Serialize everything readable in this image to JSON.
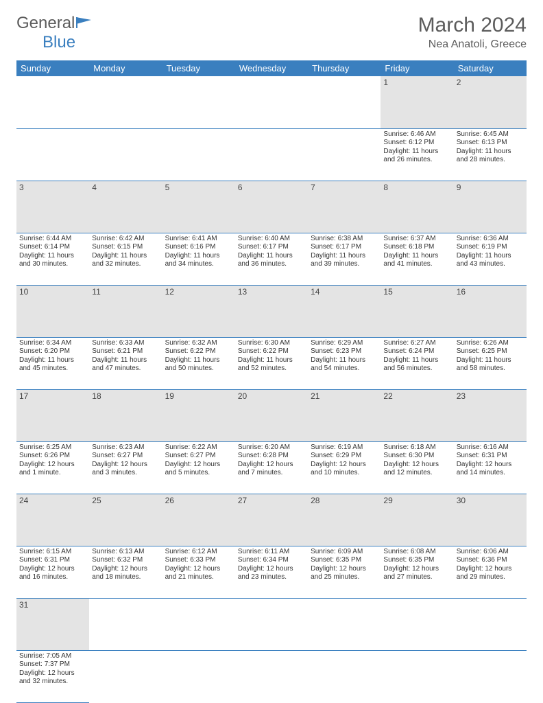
{
  "brand": {
    "part1": "General",
    "part2": "Blue"
  },
  "title": "March 2024",
  "location": "Nea Anatoli, Greece",
  "colors": {
    "accent": "#3a7fbf",
    "dayrow_bg": "#e4e4e4",
    "text": "#5c5c5c"
  },
  "weekdays": [
    "Sunday",
    "Monday",
    "Tuesday",
    "Wednesday",
    "Thursday",
    "Friday",
    "Saturday"
  ],
  "weeks": [
    [
      null,
      null,
      null,
      null,
      null,
      {
        "n": "1",
        "sr": "6:46 AM",
        "ss": "6:12 PM",
        "dl": "11 hours and 26 minutes."
      },
      {
        "n": "2",
        "sr": "6:45 AM",
        "ss": "6:13 PM",
        "dl": "11 hours and 28 minutes."
      }
    ],
    [
      {
        "n": "3",
        "sr": "6:44 AM",
        "ss": "6:14 PM",
        "dl": "11 hours and 30 minutes."
      },
      {
        "n": "4",
        "sr": "6:42 AM",
        "ss": "6:15 PM",
        "dl": "11 hours and 32 minutes."
      },
      {
        "n": "5",
        "sr": "6:41 AM",
        "ss": "6:16 PM",
        "dl": "11 hours and 34 minutes."
      },
      {
        "n": "6",
        "sr": "6:40 AM",
        "ss": "6:17 PM",
        "dl": "11 hours and 36 minutes."
      },
      {
        "n": "7",
        "sr": "6:38 AM",
        "ss": "6:17 PM",
        "dl": "11 hours and 39 minutes."
      },
      {
        "n": "8",
        "sr": "6:37 AM",
        "ss": "6:18 PM",
        "dl": "11 hours and 41 minutes."
      },
      {
        "n": "9",
        "sr": "6:36 AM",
        "ss": "6:19 PM",
        "dl": "11 hours and 43 minutes."
      }
    ],
    [
      {
        "n": "10",
        "sr": "6:34 AM",
        "ss": "6:20 PM",
        "dl": "11 hours and 45 minutes."
      },
      {
        "n": "11",
        "sr": "6:33 AM",
        "ss": "6:21 PM",
        "dl": "11 hours and 47 minutes."
      },
      {
        "n": "12",
        "sr": "6:32 AM",
        "ss": "6:22 PM",
        "dl": "11 hours and 50 minutes."
      },
      {
        "n": "13",
        "sr": "6:30 AM",
        "ss": "6:22 PM",
        "dl": "11 hours and 52 minutes."
      },
      {
        "n": "14",
        "sr": "6:29 AM",
        "ss": "6:23 PM",
        "dl": "11 hours and 54 minutes."
      },
      {
        "n": "15",
        "sr": "6:27 AM",
        "ss": "6:24 PM",
        "dl": "11 hours and 56 minutes."
      },
      {
        "n": "16",
        "sr": "6:26 AM",
        "ss": "6:25 PM",
        "dl": "11 hours and 58 minutes."
      }
    ],
    [
      {
        "n": "17",
        "sr": "6:25 AM",
        "ss": "6:26 PM",
        "dl": "12 hours and 1 minute."
      },
      {
        "n": "18",
        "sr": "6:23 AM",
        "ss": "6:27 PM",
        "dl": "12 hours and 3 minutes."
      },
      {
        "n": "19",
        "sr": "6:22 AM",
        "ss": "6:27 PM",
        "dl": "12 hours and 5 minutes."
      },
      {
        "n": "20",
        "sr": "6:20 AM",
        "ss": "6:28 PM",
        "dl": "12 hours and 7 minutes."
      },
      {
        "n": "21",
        "sr": "6:19 AM",
        "ss": "6:29 PM",
        "dl": "12 hours and 10 minutes."
      },
      {
        "n": "22",
        "sr": "6:18 AM",
        "ss": "6:30 PM",
        "dl": "12 hours and 12 minutes."
      },
      {
        "n": "23",
        "sr": "6:16 AM",
        "ss": "6:31 PM",
        "dl": "12 hours and 14 minutes."
      }
    ],
    [
      {
        "n": "24",
        "sr": "6:15 AM",
        "ss": "6:31 PM",
        "dl": "12 hours and 16 minutes."
      },
      {
        "n": "25",
        "sr": "6:13 AM",
        "ss": "6:32 PM",
        "dl": "12 hours and 18 minutes."
      },
      {
        "n": "26",
        "sr": "6:12 AM",
        "ss": "6:33 PM",
        "dl": "12 hours and 21 minutes."
      },
      {
        "n": "27",
        "sr": "6:11 AM",
        "ss": "6:34 PM",
        "dl": "12 hours and 23 minutes."
      },
      {
        "n": "28",
        "sr": "6:09 AM",
        "ss": "6:35 PM",
        "dl": "12 hours and 25 minutes."
      },
      {
        "n": "29",
        "sr": "6:08 AM",
        "ss": "6:35 PM",
        "dl": "12 hours and 27 minutes."
      },
      {
        "n": "30",
        "sr": "6:06 AM",
        "ss": "6:36 PM",
        "dl": "12 hours and 29 minutes."
      }
    ],
    [
      {
        "n": "31",
        "sr": "7:05 AM",
        "ss": "7:37 PM",
        "dl": "12 hours and 32 minutes."
      },
      null,
      null,
      null,
      null,
      null,
      null
    ]
  ],
  "labels": {
    "sunrise": "Sunrise:",
    "sunset": "Sunset:",
    "daylight": "Daylight:"
  }
}
